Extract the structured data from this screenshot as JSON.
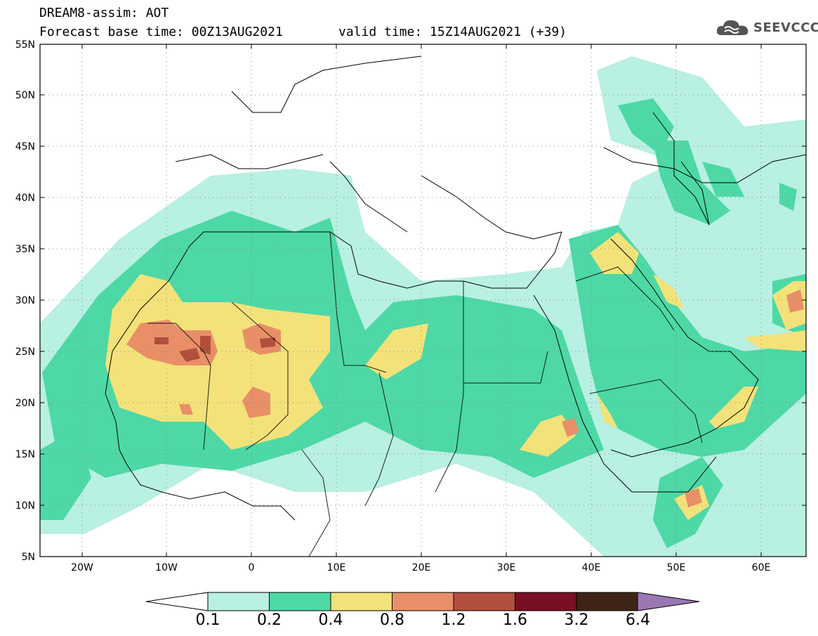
{
  "title": {
    "line1": "DREAM8-assim: AOT",
    "line2": "Forecast base time: 00Z13AUG2021",
    "valid": "valid time: 15Z14AUG2021 (+39)"
  },
  "logo": {
    "text": "SEEVCCC",
    "icon": "cloud-icon"
  },
  "map": {
    "lat_labels": [
      "55N",
      "50N",
      "45N",
      "40N",
      "35N",
      "30N",
      "25N",
      "20N",
      "15N",
      "10N",
      "5N"
    ],
    "lon_labels": [
      "20W",
      "10W",
      "0",
      "10E",
      "20E",
      "30E",
      "40E",
      "50E",
      "60E"
    ],
    "lat_range": [
      5,
      55
    ],
    "lon_range": [
      -25,
      65
    ]
  },
  "colorbar": {
    "labels": [
      "0.1",
      "0.2",
      "0.4",
      "0.8",
      "1.2",
      "1.6",
      "3.2",
      "6.4"
    ],
    "colors": [
      "#b8f0e2",
      "#4dd8a6",
      "#f3e27a",
      "#e98f68",
      "#b24f3c",
      "#7a0e22",
      "#3d2416",
      "#9a78b4"
    ]
  }
}
